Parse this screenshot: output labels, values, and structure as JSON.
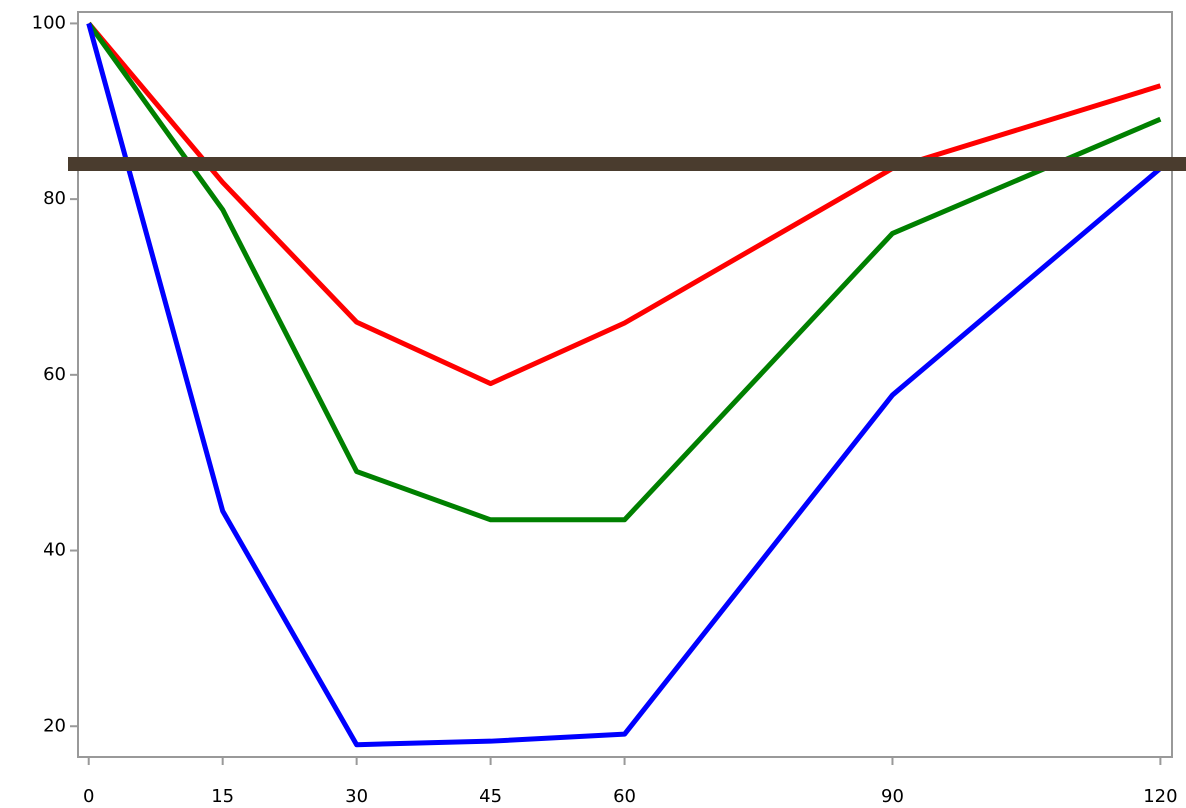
{
  "chart_data": {
    "type": "line",
    "x": [
      0,
      15,
      30,
      45,
      60,
      90,
      120
    ],
    "series": [
      {
        "color": "#ff0000",
        "values": [
          100,
          81.9,
          66.0,
          59.0,
          65.9,
          83.5,
          92.9
        ]
      },
      {
        "color": "#008000",
        "values": [
          100,
          78.8,
          49.0,
          43.5,
          43.5,
          76.1,
          89.1
        ]
      },
      {
        "color": "#0000ff",
        "values": [
          100,
          44.5,
          17.9,
          18.3,
          19.1,
          57.7,
          83.5
        ]
      }
    ],
    "xlim": [
      -1.2,
      121.3
    ],
    "ylim": [
      16.5,
      101.3
    ],
    "xticks": [
      0,
      15,
      30,
      45,
      60,
      90,
      120
    ],
    "yticks": [
      20,
      40,
      60,
      80,
      100
    ],
    "reference_line": {
      "value": 84,
      "color": "#4a3c2e"
    }
  }
}
